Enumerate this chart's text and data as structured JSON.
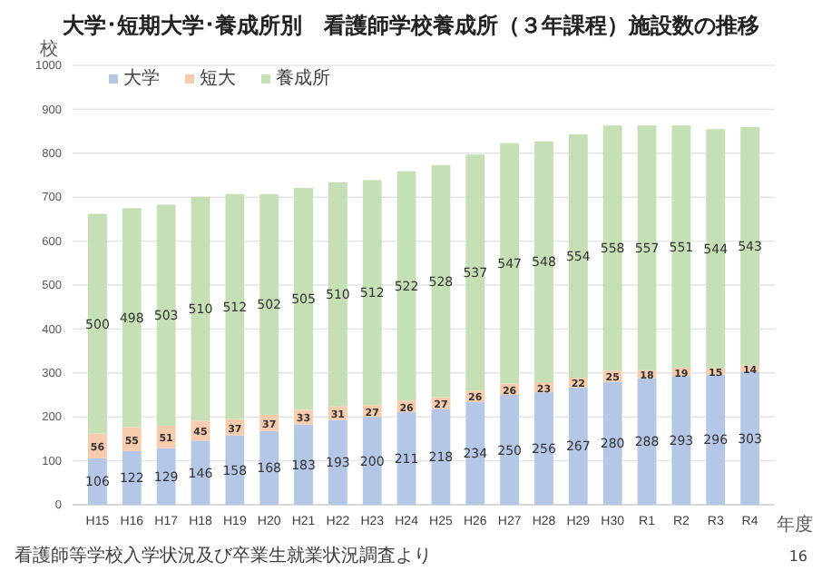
{
  "chart_data": {
    "type": "bar",
    "title": "大学･短期大学･養成所別　看護師学校養成所（３年課程）施設数の推移",
    "ylabel": "校",
    "xlabel": "年度",
    "categories": [
      "H15",
      "H16",
      "H17",
      "H18",
      "H19",
      "H20",
      "H21",
      "H22",
      "H23",
      "H24",
      "H25",
      "H26",
      "H27",
      "H28",
      "H29",
      "H30",
      "R1",
      "R2",
      "R3",
      "R4"
    ],
    "stacked": true,
    "data_labels": true,
    "legend": "top left",
    "grid": "y",
    "ylim": [
      0,
      1000
    ],
    "yticks": [
      0,
      100,
      200,
      300,
      400,
      500,
      600,
      700,
      800,
      900,
      1000
    ],
    "series": [
      {
        "name": "大学",
        "color": "#b4c7e7",
        "values": [
          106,
          122,
          129,
          146,
          158,
          168,
          183,
          193,
          200,
          211,
          218,
          234,
          250,
          256,
          267,
          280,
          288,
          293,
          296,
          303
        ]
      },
      {
        "name": "短大",
        "color": "#f8cbad",
        "values": [
          56,
          55,
          51,
          45,
          37,
          37,
          33,
          31,
          27,
          26,
          27,
          26,
          26,
          23,
          22,
          25,
          18,
          19,
          15,
          14
        ]
      },
      {
        "name": "養成所",
        "color": "#c5e0b4",
        "values": [
          500,
          498,
          503,
          510,
          512,
          502,
          505,
          510,
          512,
          522,
          528,
          537,
          547,
          548,
          554,
          558,
          557,
          551,
          544,
          543
        ]
      }
    ],
    "annotations": [
      "看護師等学校入学状況及び卒業生就業状況調査より",
      "16"
    ]
  }
}
